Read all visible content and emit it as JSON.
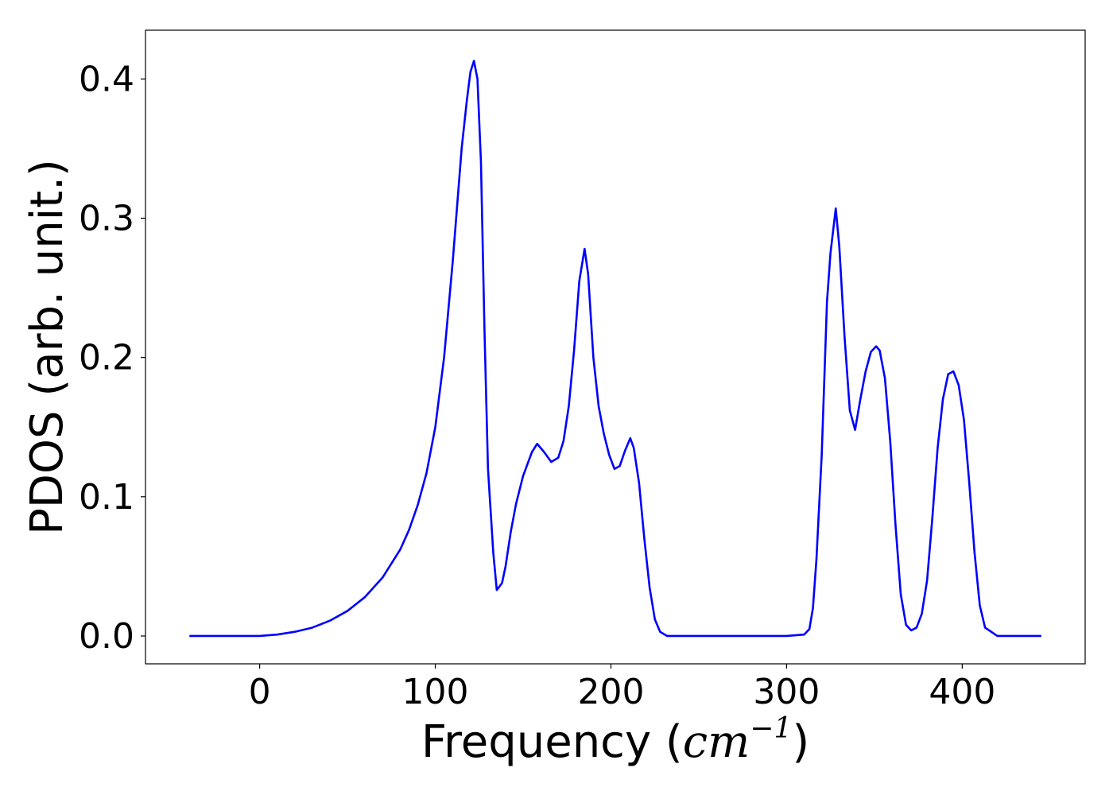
{
  "chart_data": {
    "type": "line",
    "title": "",
    "xlabel": "Frequency (cm^{-1})",
    "xlabel_parts": {
      "prefix": "Frequency (",
      "unit_base": "cm",
      "unit_exponent": "−1",
      "suffix": ")"
    },
    "ylabel": "PDOS (arb. unit.)",
    "xlim": [
      -65,
      470
    ],
    "ylim": [
      -0.02,
      0.435
    ],
    "x_ticks": [
      0,
      100,
      200,
      300,
      400
    ],
    "y_ticks": [
      0.0,
      0.1,
      0.2,
      0.3,
      0.4
    ],
    "x_tick_labels": [
      "0",
      "100",
      "200",
      "300",
      "400"
    ],
    "y_tick_labels": [
      "0.0",
      "0.1",
      "0.2",
      "0.3",
      "0.4"
    ],
    "grid": false,
    "legend": "none",
    "series": [
      {
        "color": "#0000ff",
        "x": [
          -40,
          -20,
          0,
          10,
          20,
          30,
          40,
          50,
          60,
          70,
          80,
          85,
          90,
          95,
          100,
          105,
          110,
          115,
          118,
          120,
          122,
          124,
          126,
          128,
          130,
          133,
          135,
          138,
          140,
          143,
          146,
          150,
          155,
          158,
          162,
          166,
          170,
          173,
          176,
          179,
          182,
          185,
          187,
          190,
          193,
          196,
          199,
          202,
          205,
          208,
          211,
          213,
          216,
          219,
          222,
          225,
          228,
          232,
          240,
          260,
          280,
          300,
          310,
          313,
          315,
          317,
          320,
          323,
          325,
          328,
          330,
          333,
          336,
          339,
          342,
          345,
          348,
          351,
          353,
          356,
          359,
          362,
          365,
          368,
          371,
          374,
          377,
          380,
          383,
          386,
          389,
          392,
          395,
          398,
          401,
          404,
          407,
          410,
          413,
          420,
          445
        ],
        "y": [
          0.0,
          0.0,
          0.0,
          0.001,
          0.003,
          0.006,
          0.011,
          0.018,
          0.028,
          0.042,
          0.062,
          0.076,
          0.094,
          0.117,
          0.15,
          0.2,
          0.27,
          0.35,
          0.385,
          0.405,
          0.413,
          0.4,
          0.34,
          0.22,
          0.12,
          0.06,
          0.033,
          0.038,
          0.05,
          0.075,
          0.095,
          0.115,
          0.132,
          0.138,
          0.132,
          0.125,
          0.128,
          0.14,
          0.165,
          0.205,
          0.255,
          0.278,
          0.26,
          0.2,
          0.165,
          0.145,
          0.13,
          0.12,
          0.122,
          0.133,
          0.142,
          0.135,
          0.11,
          0.07,
          0.035,
          0.012,
          0.003,
          0.0,
          0.0,
          0.0,
          0.0,
          0.0,
          0.001,
          0.005,
          0.02,
          0.055,
          0.13,
          0.24,
          0.275,
          0.307,
          0.28,
          0.215,
          0.162,
          0.148,
          0.17,
          0.19,
          0.204,
          0.208,
          0.205,
          0.185,
          0.14,
          0.08,
          0.03,
          0.008,
          0.004,
          0.006,
          0.016,
          0.04,
          0.085,
          0.135,
          0.17,
          0.188,
          0.19,
          0.18,
          0.155,
          0.11,
          0.06,
          0.022,
          0.006,
          0.0,
          0.0
        ]
      }
    ]
  }
}
